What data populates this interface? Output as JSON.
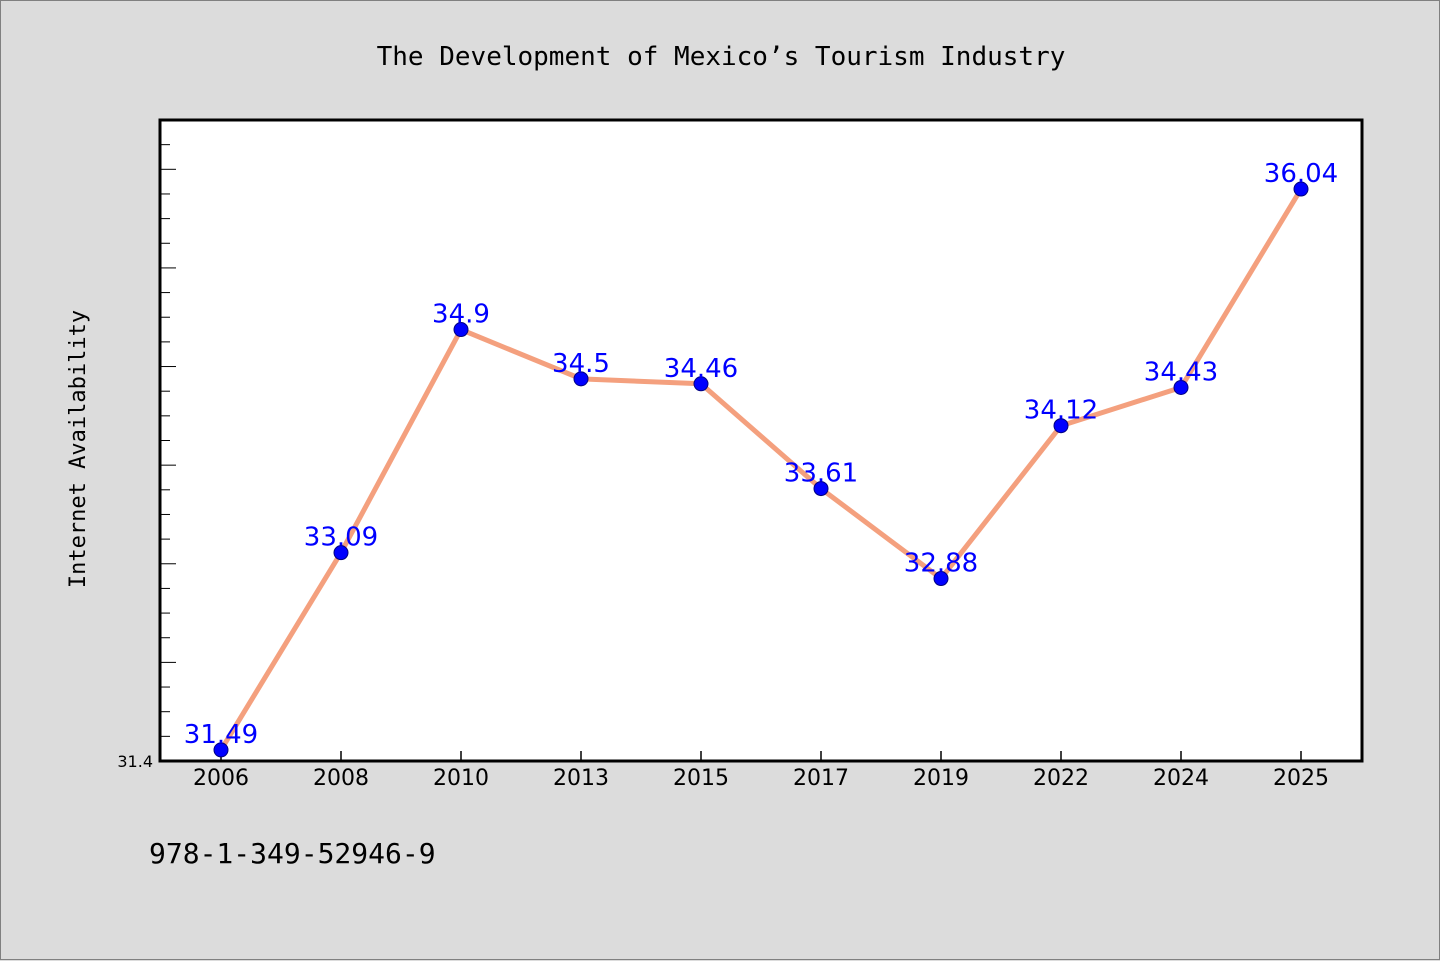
{
  "chart_data": {
    "type": "line",
    "title": "The Development of Mexico’s Tourism Industry",
    "xlabel": "",
    "ylabel": "Internet Availability",
    "categories": [
      "2006",
      "2008",
      "2010",
      "2013",
      "2015",
      "2017",
      "2019",
      "2022",
      "2024",
      "2025"
    ],
    "series": [
      {
        "values": [
          31.49,
          33.09,
          34.9,
          34.5,
          34.46,
          33.61,
          32.88,
          34.12,
          34.43,
          36.04
        ]
      }
    ],
    "ylim": [
      31.4,
      36.6
    ],
    "y_tick_labels": [
      "31.4"
    ],
    "grid": false,
    "legend": "none"
  },
  "colors": {
    "background": "#dcdcdc",
    "plot_background": "#ffffff",
    "line": "#f4a07e",
    "marker": "#0000ff",
    "data_label": "#0000ff"
  },
  "footer": {
    "isbn": "978-1-349-52946-9"
  }
}
